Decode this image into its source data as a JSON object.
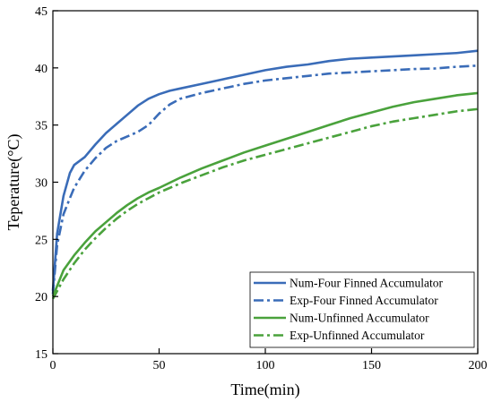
{
  "chart_data": {
    "type": "line",
    "xlabel": "Time(min)",
    "ylabel": "Teperature(°C)",
    "xlim": [
      0,
      200
    ],
    "ylim": [
      15,
      45
    ],
    "xticks": [
      0,
      50,
      100,
      150,
      200
    ],
    "yticks": [
      15,
      20,
      25,
      30,
      35,
      40,
      45
    ],
    "grid": false,
    "legend_position": "bottom-right",
    "series": [
      {
        "name": "Num-Four Finned Accumulator",
        "color": "#3a6cb8",
        "style": "solid",
        "x": [
          0,
          2,
          5,
          8,
          10,
          15,
          20,
          25,
          30,
          35,
          40,
          45,
          50,
          55,
          60,
          70,
          80,
          90,
          100,
          110,
          120,
          130,
          140,
          150,
          160,
          170,
          180,
          190,
          200
        ],
        "y": [
          20.5,
          25.5,
          28.8,
          30.8,
          31.5,
          32.2,
          33.3,
          34.3,
          35.1,
          35.9,
          36.7,
          37.3,
          37.7,
          38.0,
          38.2,
          38.6,
          39.0,
          39.4,
          39.8,
          40.1,
          40.3,
          40.6,
          40.8,
          40.9,
          41.0,
          41.1,
          41.2,
          41.3,
          41.5
        ]
      },
      {
        "name": "Exp-Four Finned Accumulator",
        "color": "#3a6cb8",
        "style": "dashdot",
        "x": [
          0,
          2,
          5,
          8,
          10,
          15,
          20,
          25,
          30,
          35,
          40,
          45,
          50,
          55,
          60,
          70,
          80,
          90,
          100,
          110,
          120,
          130,
          140,
          150,
          160,
          170,
          180,
          190,
          200
        ],
        "y": [
          20.2,
          24.5,
          27.2,
          28.6,
          29.5,
          31.0,
          32.1,
          33.0,
          33.6,
          34.0,
          34.4,
          35.0,
          36.0,
          36.8,
          37.3,
          37.8,
          38.2,
          38.6,
          38.9,
          39.1,
          39.3,
          39.5,
          39.6,
          39.7,
          39.8,
          39.9,
          39.95,
          40.1,
          40.2
        ]
      },
      {
        "name": "Num-Unfinned Accumulator",
        "color": "#4aa23c",
        "style": "solid",
        "x": [
          0,
          5,
          10,
          15,
          20,
          25,
          30,
          35,
          40,
          45,
          50,
          60,
          70,
          80,
          90,
          100,
          110,
          120,
          130,
          140,
          150,
          160,
          170,
          180,
          190,
          200
        ],
        "y": [
          20.0,
          22.3,
          23.6,
          24.7,
          25.7,
          26.5,
          27.3,
          28.0,
          28.6,
          29.1,
          29.5,
          30.4,
          31.2,
          31.9,
          32.6,
          33.2,
          33.8,
          34.4,
          35.0,
          35.6,
          36.1,
          36.6,
          37.0,
          37.3,
          37.6,
          37.8
        ]
      },
      {
        "name": "Exp-Unfinned Accumulator",
        "color": "#4aa23c",
        "style": "dashdot",
        "x": [
          0,
          5,
          10,
          15,
          20,
          25,
          30,
          35,
          40,
          45,
          50,
          60,
          70,
          80,
          90,
          100,
          110,
          120,
          130,
          140,
          150,
          160,
          170,
          180,
          190,
          200
        ],
        "y": [
          19.8,
          21.5,
          22.9,
          24.1,
          25.1,
          26.0,
          26.8,
          27.5,
          28.1,
          28.6,
          29.1,
          29.9,
          30.6,
          31.3,
          31.9,
          32.4,
          32.9,
          33.4,
          33.9,
          34.4,
          34.9,
          35.3,
          35.6,
          35.9,
          36.2,
          36.4
        ]
      }
    ]
  }
}
